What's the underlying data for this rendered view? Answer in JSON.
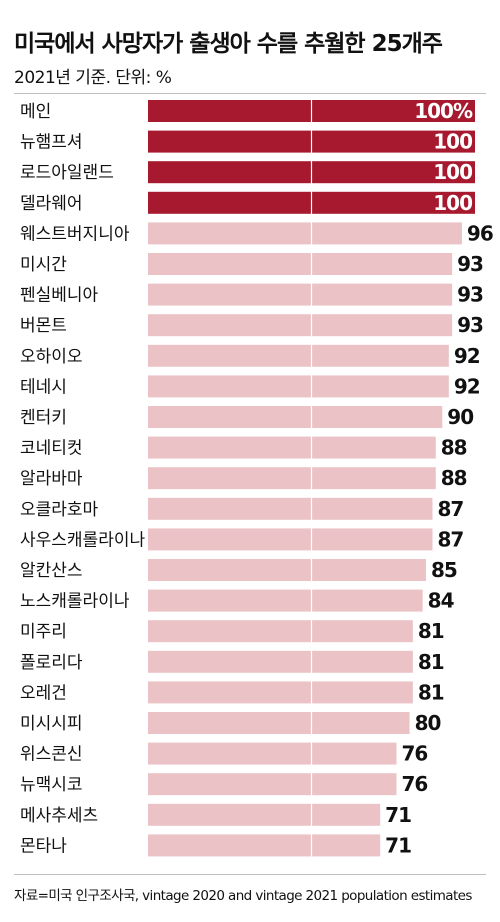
{
  "title": "미국에서 사망자가 출생아 수를 추월한 25개주",
  "subtitle": "2021년 기준. 단위: %",
  "source": "자료=미국 인구조사국, vintage 2020 and vintage 2021 population estimates",
  "colors": {
    "highlight": "#a6192e",
    "normal": "#ebc3c7",
    "label_on_dark": "#ffffff",
    "label": "#111111"
  },
  "chart_data": {
    "type": "bar",
    "orientation": "horizontal",
    "categories": [
      "메인",
      "뉴햄프셔",
      "로드아일랜드",
      "델라웨어",
      "웨스트버지니아",
      "미시간",
      "펜실베니아",
      "버몬트",
      "오하이오",
      "테네시",
      "켄터키",
      "코네티컷",
      "알라바마",
      "오클라호마",
      "사우스캐롤라이나",
      "알칸산스",
      "노스캐롤라이나",
      "미주리",
      "폴로리다",
      "오레건",
      "미시시피",
      "위스콘신",
      "뉴맥시코",
      "메사추세츠",
      "몬타나"
    ],
    "values": [
      100,
      100,
      100,
      100,
      96,
      93,
      93,
      93,
      92,
      92,
      90,
      88,
      88,
      87,
      87,
      85,
      84,
      81,
      81,
      81,
      80,
      76,
      76,
      71,
      71
    ],
    "value_labels": [
      "100%",
      "100",
      "100",
      "100",
      "96",
      "93",
      "93",
      "93",
      "92",
      "92",
      "90",
      "88",
      "88",
      "87",
      "87",
      "85",
      "84",
      "81",
      "81",
      "81",
      "80",
      "76",
      "76",
      "71",
      "71"
    ],
    "highlighted": [
      true,
      true,
      true,
      true,
      false,
      false,
      false,
      false,
      false,
      false,
      false,
      false,
      false,
      false,
      false,
      false,
      false,
      false,
      false,
      false,
      false,
      false,
      false,
      false,
      false
    ],
    "xlim": [
      0,
      100
    ],
    "gridline_at": 50
  }
}
